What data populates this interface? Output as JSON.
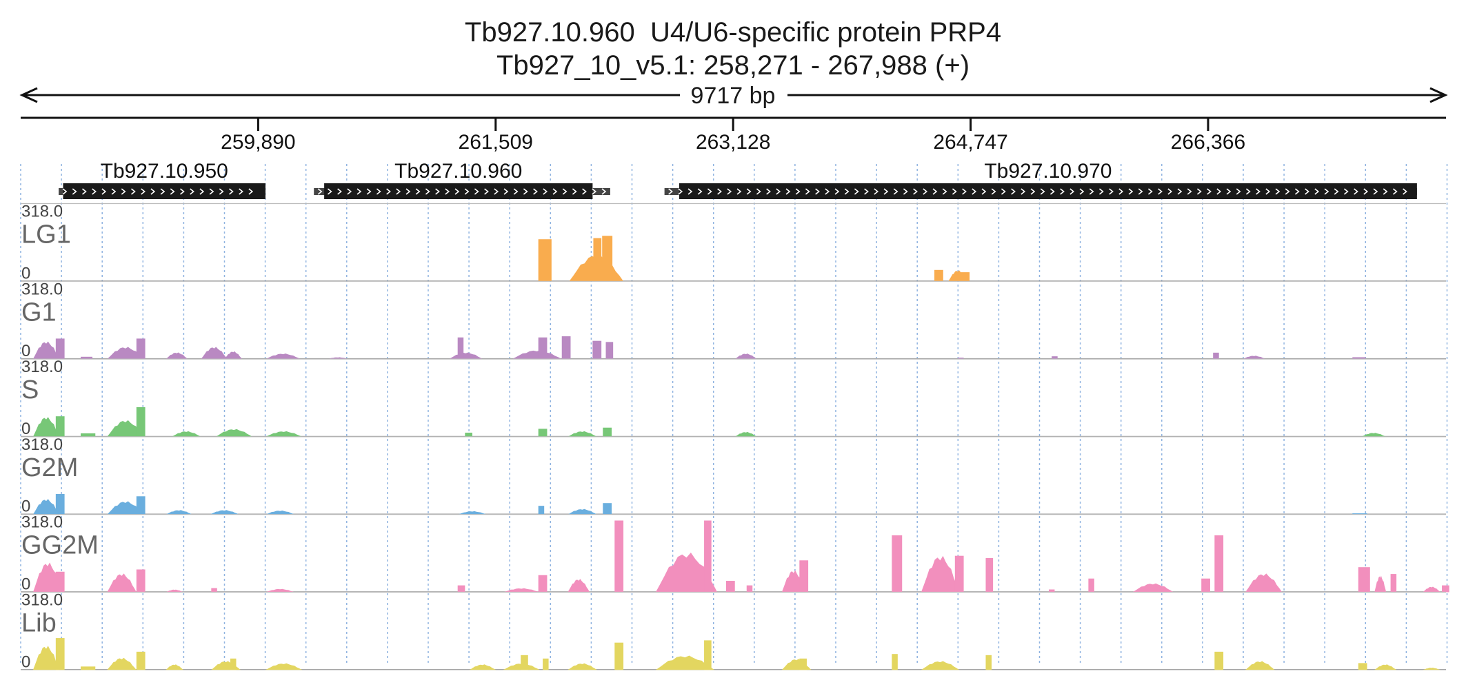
{
  "title": "Tb927.10.960  U4/U6-specific protein PRP4",
  "subtitle": "Tb927_10_v5.1: 258,271 - 267,988 (+)",
  "span_label": "9717 bp",
  "colors": {
    "LG1": "#f9ac4e",
    "G1": "#b989c2",
    "S": "#77c777",
    "G2M": "#6aaede",
    "GG2M": "#f28fbd",
    "Lib": "#e3d660",
    "gene": "#1a1a1a",
    "grid": "#8fb3e0"
  },
  "chart_data": {
    "type": "area",
    "region": {
      "chromosome": "Tb927_10_v5.1",
      "start": 258271,
      "end": 267988,
      "strand": "+"
    },
    "x_ticks": [
      259890,
      261509,
      263128,
      264747,
      266366
    ],
    "x_tick_labels": [
      "259,890",
      "261,509",
      "263,128",
      "264,747",
      "266,366"
    ],
    "genes": [
      {
        "name": "Tb927.10.950",
        "start": 258560,
        "end": 259940,
        "utr5": 258530,
        "utr3": 259940,
        "strand": "+"
      },
      {
        "name": "Tb927.10.960",
        "start": 260340,
        "end": 262170,
        "utr5": 260270,
        "utr3": 262290,
        "strand": "+"
      },
      {
        "name": "Tb927.10.970",
        "start": 262760,
        "end": 267790,
        "utr5": 262660,
        "utr3": 267790,
        "strand": "+"
      }
    ],
    "ylim": [
      0,
      318.0
    ],
    "ymax_label": "318.0",
    "ymin_label": "0",
    "tracks": [
      {
        "name": "LG1",
        "peaks": [
          {
            "x": 261800,
            "w": 90,
            "h": 185,
            "s": "flat"
          },
          {
            "x": 262010,
            "w": 370,
            "h": 120,
            "s": "hump"
          },
          {
            "x": 262175,
            "w": 55,
            "h": 190,
            "s": "flat"
          },
          {
            "x": 262235,
            "w": 70,
            "h": 200,
            "s": "flat"
          },
          {
            "x": 264500,
            "w": 60,
            "h": 50,
            "s": "flat"
          },
          {
            "x": 264595,
            "w": 130,
            "h": 50,
            "s": "hump"
          },
          {
            "x": 264680,
            "w": 60,
            "h": 40,
            "s": "flat"
          }
        ]
      },
      {
        "name": "G1",
        "peaks": [
          {
            "x": 258355,
            "w": 180,
            "h": 80,
            "s": "hump"
          },
          {
            "x": 258510,
            "w": 60,
            "h": 90,
            "s": "flat"
          },
          {
            "x": 258680,
            "w": 80,
            "h": 10,
            "s": "flat"
          },
          {
            "x": 258860,
            "w": 250,
            "h": 55,
            "s": "hump"
          },
          {
            "x": 259060,
            "w": 60,
            "h": 90,
            "s": "flat"
          },
          {
            "x": 259260,
            "w": 150,
            "h": 30,
            "s": "hump"
          },
          {
            "x": 259500,
            "w": 180,
            "h": 55,
            "s": "hump"
          },
          {
            "x": 259660,
            "w": 120,
            "h": 35,
            "s": "hump"
          },
          {
            "x": 259940,
            "w": 240,
            "h": 25,
            "s": "hump"
          },
          {
            "x": 260360,
            "w": 150,
            "h": 8,
            "s": "hump"
          },
          {
            "x": 261190,
            "w": 230,
            "h": 30,
            "s": "hump"
          },
          {
            "x": 261250,
            "w": 40,
            "h": 95,
            "s": "flat"
          },
          {
            "x": 261620,
            "w": 340,
            "h": 40,
            "s": "hump"
          },
          {
            "x": 261800,
            "w": 60,
            "h": 95,
            "s": "flat"
          },
          {
            "x": 261960,
            "w": 60,
            "h": 100,
            "s": "flat"
          },
          {
            "x": 262170,
            "w": 60,
            "h": 80,
            "s": "flat"
          },
          {
            "x": 262260,
            "w": 50,
            "h": 75,
            "s": "flat"
          },
          {
            "x": 263140,
            "w": 150,
            "h": 25,
            "s": "hump"
          },
          {
            "x": 264660,
            "w": 40,
            "h": 6,
            "s": "flat"
          },
          {
            "x": 265300,
            "w": 40,
            "h": 12,
            "s": "flat"
          },
          {
            "x": 266400,
            "w": 40,
            "h": 28,
            "s": "flat"
          },
          {
            "x": 266600,
            "w": 160,
            "h": 15,
            "s": "hump"
          },
          {
            "x": 267350,
            "w": 90,
            "h": 8,
            "s": "flat"
          }
        ]
      },
      {
        "name": "S",
        "peaks": [
          {
            "x": 258355,
            "w": 180,
            "h": 90,
            "s": "hump"
          },
          {
            "x": 258510,
            "w": 60,
            "h": 90,
            "s": "flat"
          },
          {
            "x": 258680,
            "w": 100,
            "h": 15,
            "s": "flat"
          },
          {
            "x": 258860,
            "w": 250,
            "h": 75,
            "s": "hump"
          },
          {
            "x": 259060,
            "w": 60,
            "h": 130,
            "s": "flat"
          },
          {
            "x": 259300,
            "w": 200,
            "h": 25,
            "s": "hump"
          },
          {
            "x": 259600,
            "w": 250,
            "h": 35,
            "s": "hump"
          },
          {
            "x": 259940,
            "w": 250,
            "h": 25,
            "s": "hump"
          },
          {
            "x": 261300,
            "w": 50,
            "h": 18,
            "s": "flat"
          },
          {
            "x": 261800,
            "w": 60,
            "h": 35,
            "s": "flat"
          },
          {
            "x": 262000,
            "w": 200,
            "h": 25,
            "s": "hump"
          },
          {
            "x": 262240,
            "w": 60,
            "h": 40,
            "s": "flat"
          },
          {
            "x": 263140,
            "w": 150,
            "h": 22,
            "s": "hump"
          },
          {
            "x": 267410,
            "w": 170,
            "h": 18,
            "s": "hump"
          }
        ]
      },
      {
        "name": "G2M",
        "peaks": [
          {
            "x": 258355,
            "w": 180,
            "h": 70,
            "s": "hump"
          },
          {
            "x": 258510,
            "w": 60,
            "h": 90,
            "s": "flat"
          },
          {
            "x": 258860,
            "w": 250,
            "h": 60,
            "s": "hump"
          },
          {
            "x": 259060,
            "w": 60,
            "h": 80,
            "s": "flat"
          },
          {
            "x": 259260,
            "w": 180,
            "h": 20,
            "s": "hump"
          },
          {
            "x": 259560,
            "w": 200,
            "h": 20,
            "s": "hump"
          },
          {
            "x": 259940,
            "w": 200,
            "h": 18,
            "s": "hump"
          },
          {
            "x": 261250,
            "w": 200,
            "h": 15,
            "s": "hump"
          },
          {
            "x": 261800,
            "w": 40,
            "h": 38,
            "s": "flat"
          },
          {
            "x": 262000,
            "w": 200,
            "h": 25,
            "s": "hump"
          },
          {
            "x": 262240,
            "w": 60,
            "h": 50,
            "s": "flat"
          },
          {
            "x": 267350,
            "w": 100,
            "h": 5,
            "s": "flat"
          }
        ]
      },
      {
        "name": "GG2M",
        "peaks": [
          {
            "x": 258355,
            "w": 200,
            "h": 135,
            "s": "hump"
          },
          {
            "x": 258510,
            "w": 60,
            "h": 90,
            "s": "flat"
          },
          {
            "x": 258860,
            "w": 200,
            "h": 85,
            "s": "hump"
          },
          {
            "x": 259060,
            "w": 60,
            "h": 100,
            "s": "flat"
          },
          {
            "x": 259260,
            "w": 120,
            "h": 12,
            "s": "hump"
          },
          {
            "x": 259570,
            "w": 40,
            "h": 18,
            "s": "flat"
          },
          {
            "x": 259940,
            "w": 200,
            "h": 15,
            "s": "hump"
          },
          {
            "x": 261250,
            "w": 50,
            "h": 30,
            "s": "flat"
          },
          {
            "x": 261560,
            "w": 250,
            "h": 18,
            "s": "hump"
          },
          {
            "x": 261800,
            "w": 60,
            "h": 75,
            "s": "flat"
          },
          {
            "x": 262000,
            "w": 150,
            "h": 60,
            "s": "hump"
          },
          {
            "x": 262320,
            "w": 60,
            "h": 315,
            "s": "flat"
          },
          {
            "x": 262600,
            "w": 420,
            "h": 180,
            "s": "hump"
          },
          {
            "x": 262930,
            "w": 50,
            "h": 315,
            "s": "flat"
          },
          {
            "x": 263080,
            "w": 60,
            "h": 50,
            "s": "flat"
          },
          {
            "x": 263220,
            "w": 40,
            "h": 30,
            "s": "flat"
          },
          {
            "x": 263460,
            "w": 160,
            "h": 100,
            "s": "hump"
          },
          {
            "x": 263580,
            "w": 60,
            "h": 140,
            "s": "flat"
          },
          {
            "x": 264210,
            "w": 70,
            "h": 250,
            "s": "flat"
          },
          {
            "x": 264410,
            "w": 260,
            "h": 165,
            "s": "hump"
          },
          {
            "x": 264640,
            "w": 60,
            "h": 160,
            "s": "flat"
          },
          {
            "x": 264850,
            "w": 50,
            "h": 150,
            "s": "flat"
          },
          {
            "x": 265280,
            "w": 40,
            "h": 12,
            "s": "flat"
          },
          {
            "x": 265550,
            "w": 40,
            "h": 60,
            "s": "flat"
          },
          {
            "x": 265850,
            "w": 280,
            "h": 40,
            "s": "hump"
          },
          {
            "x": 266020,
            "w": 40,
            "h": 25,
            "s": "flat"
          },
          {
            "x": 266320,
            "w": 60,
            "h": 60,
            "s": "flat"
          },
          {
            "x": 266410,
            "w": 60,
            "h": 250,
            "s": "flat"
          },
          {
            "x": 266620,
            "w": 250,
            "h": 85,
            "s": "hump"
          },
          {
            "x": 267390,
            "w": 80,
            "h": 110,
            "s": "flat"
          },
          {
            "x": 267500,
            "w": 80,
            "h": 75,
            "s": "hump"
          },
          {
            "x": 267610,
            "w": 40,
            "h": 80,
            "s": "flat"
          },
          {
            "x": 267830,
            "w": 120,
            "h": 25,
            "s": "hump"
          },
          {
            "x": 267960,
            "w": 50,
            "h": 30,
            "s": "flat"
          }
        ]
      },
      {
        "name": "Lib",
        "peaks": [
          {
            "x": 258355,
            "w": 180,
            "h": 110,
            "s": "hump"
          },
          {
            "x": 258510,
            "w": 60,
            "h": 140,
            "s": "flat"
          },
          {
            "x": 258680,
            "w": 100,
            "h": 15,
            "s": "flat"
          },
          {
            "x": 258860,
            "w": 200,
            "h": 55,
            "s": "hump"
          },
          {
            "x": 259060,
            "w": 60,
            "h": 80,
            "s": "flat"
          },
          {
            "x": 259260,
            "w": 120,
            "h": 25,
            "s": "hump"
          },
          {
            "x": 259570,
            "w": 200,
            "h": 40,
            "s": "hump"
          },
          {
            "x": 259700,
            "w": 40,
            "h": 50,
            "s": "flat"
          },
          {
            "x": 259940,
            "w": 250,
            "h": 30,
            "s": "hump"
          },
          {
            "x": 261330,
            "w": 180,
            "h": 25,
            "s": "hump"
          },
          {
            "x": 261560,
            "w": 250,
            "h": 30,
            "s": "hump"
          },
          {
            "x": 261680,
            "w": 50,
            "h": 65,
            "s": "flat"
          },
          {
            "x": 261830,
            "w": 40,
            "h": 50,
            "s": "flat"
          },
          {
            "x": 262000,
            "w": 200,
            "h": 30,
            "s": "hump"
          },
          {
            "x": 262320,
            "w": 60,
            "h": 120,
            "s": "flat"
          },
          {
            "x": 262600,
            "w": 400,
            "h": 65,
            "s": "hump"
          },
          {
            "x": 262930,
            "w": 50,
            "h": 130,
            "s": "flat"
          },
          {
            "x": 263460,
            "w": 200,
            "h": 50,
            "s": "hump"
          },
          {
            "x": 263580,
            "w": 50,
            "h": 50,
            "s": "flat"
          },
          {
            "x": 264210,
            "w": 40,
            "h": 70,
            "s": "flat"
          },
          {
            "x": 264410,
            "w": 260,
            "h": 40,
            "s": "hump"
          },
          {
            "x": 264850,
            "w": 40,
            "h": 65,
            "s": "flat"
          },
          {
            "x": 266410,
            "w": 60,
            "h": 80,
            "s": "flat"
          },
          {
            "x": 266620,
            "w": 200,
            "h": 40,
            "s": "hump"
          },
          {
            "x": 267390,
            "w": 60,
            "h": 30,
            "s": "flat"
          },
          {
            "x": 267500,
            "w": 150,
            "h": 25,
            "s": "hump"
          },
          {
            "x": 267830,
            "w": 120,
            "h": 10,
            "s": "hump"
          }
        ]
      }
    ]
  }
}
